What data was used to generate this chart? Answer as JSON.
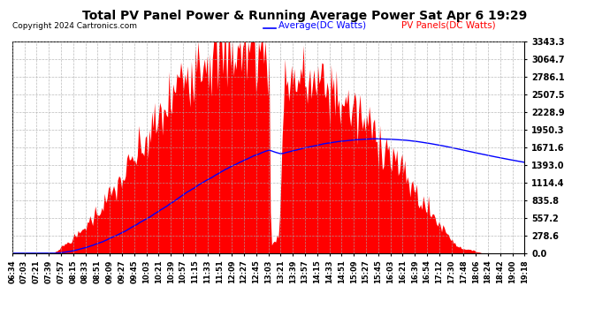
{
  "title": "Total PV Panel Power & Running Average Power Sat Apr 6 19:29",
  "copyright": "Copyright 2024 Cartronics.com",
  "legend_avg": "Average(DC Watts)",
  "legend_pv": "PV Panels(DC Watts)",
  "yticks": [
    0.0,
    278.6,
    557.2,
    835.8,
    1114.4,
    1393.0,
    1671.6,
    1950.3,
    2228.9,
    2507.5,
    2786.1,
    3064.7,
    3343.3
  ],
  "ymax": 3343.3,
  "bg_color": "#ffffff",
  "plot_bg_color": "#ffffff",
  "grid_color": "#aaaaaa",
  "fill_color": "#ff0000",
  "line_color": "#0000ff",
  "title_color": "#000000",
  "copyright_color": "#000000",
  "legend_avg_color": "#0000ff",
  "legend_pv_color": "#ff0000",
  "x_tick_labels": [
    "06:34",
    "07:03",
    "07:21",
    "07:39",
    "07:57",
    "08:15",
    "08:33",
    "08:51",
    "09:09",
    "09:27",
    "09:45",
    "10:03",
    "10:21",
    "10:39",
    "10:57",
    "11:15",
    "11:33",
    "11:51",
    "12:09",
    "12:27",
    "12:45",
    "13:03",
    "13:21",
    "13:39",
    "13:57",
    "14:15",
    "14:33",
    "14:51",
    "15:09",
    "15:27",
    "15:45",
    "16:03",
    "16:21",
    "16:39",
    "16:54",
    "17:12",
    "17:30",
    "17:48",
    "18:06",
    "18:24",
    "18:42",
    "19:00",
    "19:18"
  ]
}
